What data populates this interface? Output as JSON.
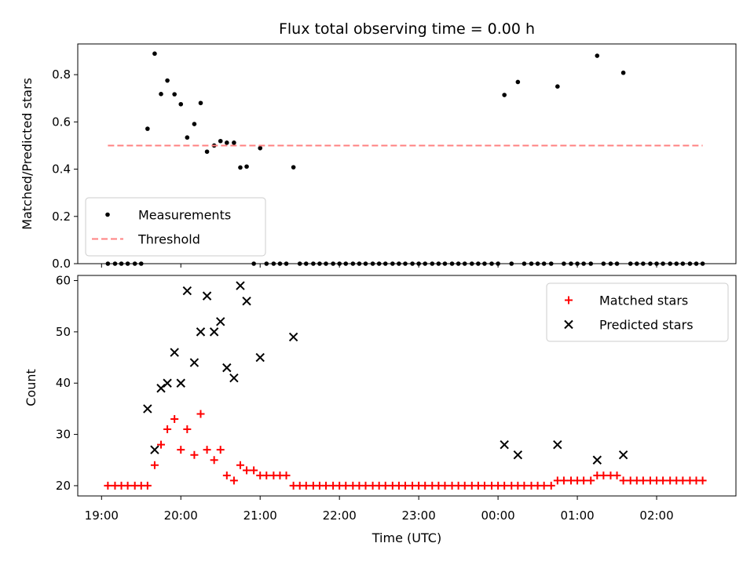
{
  "chart_data": {
    "type": "scatter",
    "title": "Flux total observing time = 0.00 h",
    "xlabel": "Time (UTC)",
    "x_tick_labels": [
      "19:00",
      "20:00",
      "21:00",
      "22:00",
      "23:00",
      "00:00",
      "01:00",
      "02:00"
    ],
    "x_unit": "hours since 19:00 UTC",
    "xlim": [
      -0.3,
      8.0
    ],
    "panels": [
      {
        "ylabel": "Matched/Predicted stars",
        "ylim": [
          0,
          0.93
        ],
        "y_ticks": [
          "0.0",
          "0.2",
          "0.4",
          "0.6",
          "0.8"
        ],
        "legend": {
          "placement": "lower-left",
          "entries": [
            "Measurements",
            "Threshold"
          ]
        },
        "series": [
          {
            "name": "Measurements",
            "marker": "dot",
            "color": "#000000",
            "points": [
              [
                0.08,
                0
              ],
              [
                0.17,
                0
              ],
              [
                0.25,
                0
              ],
              [
                0.33,
                0
              ],
              [
                0.42,
                0
              ],
              [
                0.5,
                0
              ],
              [
                0.58,
                0.571
              ],
              [
                0.67,
                0.889
              ],
              [
                0.75,
                0.718
              ],
              [
                0.83,
                0.775
              ],
              [
                0.92,
                0.717
              ],
              [
                1.0,
                0.675
              ],
              [
                1.08,
                0.534
              ],
              [
                1.17,
                0.591
              ],
              [
                1.25,
                0.68
              ],
              [
                1.33,
                0.474
              ],
              [
                1.42,
                0.5
              ],
              [
                1.5,
                0.519
              ],
              [
                1.58,
                0.512
              ],
              [
                1.67,
                0.512
              ],
              [
                1.75,
                0.407
              ],
              [
                1.83,
                0.411
              ],
              [
                1.92,
                0
              ],
              [
                2.0,
                0.489
              ],
              [
                2.08,
                0
              ],
              [
                2.17,
                0
              ],
              [
                2.25,
                0
              ],
              [
                2.33,
                0
              ],
              [
                2.42,
                0.408
              ],
              [
                2.5,
                0
              ],
              [
                2.58,
                0
              ],
              [
                2.67,
                0
              ],
              [
                2.75,
                0
              ],
              [
                2.83,
                0
              ],
              [
                2.92,
                0
              ],
              [
                3.0,
                0
              ],
              [
                3.08,
                0
              ],
              [
                3.17,
                0
              ],
              [
                3.25,
                0
              ],
              [
                3.33,
                0
              ],
              [
                3.42,
                0
              ],
              [
                3.5,
                0
              ],
              [
                3.58,
                0
              ],
              [
                3.67,
                0
              ],
              [
                3.75,
                0
              ],
              [
                3.83,
                0
              ],
              [
                3.92,
                0
              ],
              [
                4.0,
                0
              ],
              [
                4.08,
                0
              ],
              [
                4.17,
                0
              ],
              [
                4.25,
                0
              ],
              [
                4.33,
                0
              ],
              [
                4.42,
                0
              ],
              [
                4.5,
                0
              ],
              [
                4.58,
                0
              ],
              [
                4.67,
                0
              ],
              [
                4.75,
                0
              ],
              [
                4.83,
                0
              ],
              [
                4.92,
                0
              ],
              [
                5.0,
                0
              ],
              [
                5.08,
                0.714
              ],
              [
                5.17,
                0
              ],
              [
                5.25,
                0.769
              ],
              [
                5.33,
                0
              ],
              [
                5.42,
                0
              ],
              [
                5.5,
                0
              ],
              [
                5.58,
                0
              ],
              [
                5.67,
                0
              ],
              [
                5.75,
                0.75
              ],
              [
                5.83,
                0
              ],
              [
                5.92,
                0
              ],
              [
                6.0,
                0
              ],
              [
                6.08,
                0
              ],
              [
                6.17,
                0
              ],
              [
                6.25,
                0.88
              ],
              [
                6.33,
                0
              ],
              [
                6.42,
                0
              ],
              [
                6.5,
                0
              ],
              [
                6.58,
                0.808
              ],
              [
                6.67,
                0
              ],
              [
                6.75,
                0
              ],
              [
                6.83,
                0
              ],
              [
                6.92,
                0
              ],
              [
                7.0,
                0
              ],
              [
                7.08,
                0
              ],
              [
                7.17,
                0
              ],
              [
                7.25,
                0
              ],
              [
                7.33,
                0
              ],
              [
                7.42,
                0
              ],
              [
                7.5,
                0
              ],
              [
                7.58,
                0
              ]
            ]
          },
          {
            "name": "Threshold",
            "marker": "dashed-line",
            "color": "#ff8080",
            "x": [
              0.08,
              7.58
            ],
            "y": [
              0.5,
              0.5
            ]
          }
        ]
      },
      {
        "ylabel": "Count",
        "ylim": [
          18,
          61
        ],
        "y_ticks": [
          "20",
          "30",
          "40",
          "50",
          "60"
        ],
        "legend": {
          "placement": "upper-right",
          "entries": [
            "Matched stars",
            "Predicted stars"
          ]
        },
        "series": [
          {
            "name": "Matched stars",
            "marker": "plus",
            "color": "#ff0000",
            "points": [
              [
                0.08,
                20
              ],
              [
                0.17,
                20
              ],
              [
                0.25,
                20
              ],
              [
                0.33,
                20
              ],
              [
                0.42,
                20
              ],
              [
                0.5,
                20
              ],
              [
                0.58,
                20
              ],
              [
                0.67,
                24
              ],
              [
                0.75,
                28
              ],
              [
                0.83,
                31
              ],
              [
                0.92,
                33
              ],
              [
                1.0,
                27
              ],
              [
                1.08,
                31
              ],
              [
                1.17,
                26
              ],
              [
                1.25,
                34
              ],
              [
                1.33,
                27
              ],
              [
                1.42,
                25
              ],
              [
                1.5,
                27
              ],
              [
                1.58,
                22
              ],
              [
                1.67,
                21
              ],
              [
                1.75,
                24
              ],
              [
                1.83,
                23
              ],
              [
                1.92,
                23
              ],
              [
                2.0,
                22
              ],
              [
                2.08,
                22
              ],
              [
                2.17,
                22
              ],
              [
                2.25,
                22
              ],
              [
                2.33,
                22
              ],
              [
                2.42,
                20
              ],
              [
                2.5,
                20
              ],
              [
                2.58,
                20
              ],
              [
                2.67,
                20
              ],
              [
                2.75,
                20
              ],
              [
                2.83,
                20
              ],
              [
                2.92,
                20
              ],
              [
                3.0,
                20
              ],
              [
                3.08,
                20
              ],
              [
                3.17,
                20
              ],
              [
                3.25,
                20
              ],
              [
                3.33,
                20
              ],
              [
                3.42,
                20
              ],
              [
                3.5,
                20
              ],
              [
                3.58,
                20
              ],
              [
                3.67,
                20
              ],
              [
                3.75,
                20
              ],
              [
                3.83,
                20
              ],
              [
                3.92,
                20
              ],
              [
                4.0,
                20
              ],
              [
                4.08,
                20
              ],
              [
                4.17,
                20
              ],
              [
                4.25,
                20
              ],
              [
                4.33,
                20
              ],
              [
                4.42,
                20
              ],
              [
                4.5,
                20
              ],
              [
                4.58,
                20
              ],
              [
                4.67,
                20
              ],
              [
                4.75,
                20
              ],
              [
                4.83,
                20
              ],
              [
                4.92,
                20
              ],
              [
                5.0,
                20
              ],
              [
                5.08,
                20
              ],
              [
                5.17,
                20
              ],
              [
                5.25,
                20
              ],
              [
                5.33,
                20
              ],
              [
                5.42,
                20
              ],
              [
                5.5,
                20
              ],
              [
                5.58,
                20
              ],
              [
                5.67,
                20
              ],
              [
                5.75,
                21
              ],
              [
                5.83,
                21
              ],
              [
                5.92,
                21
              ],
              [
                6.0,
                21
              ],
              [
                6.08,
                21
              ],
              [
                6.17,
                21
              ],
              [
                6.25,
                22
              ],
              [
                6.33,
                22
              ],
              [
                6.42,
                22
              ],
              [
                6.5,
                22
              ],
              [
                6.58,
                21
              ],
              [
                6.67,
                21
              ],
              [
                6.75,
                21
              ],
              [
                6.83,
                21
              ],
              [
                6.92,
                21
              ],
              [
                7.0,
                21
              ],
              [
                7.08,
                21
              ],
              [
                7.17,
                21
              ],
              [
                7.25,
                21
              ],
              [
                7.33,
                21
              ],
              [
                7.42,
                21
              ],
              [
                7.5,
                21
              ],
              [
                7.58,
                21
              ]
            ]
          },
          {
            "name": "Predicted stars",
            "marker": "x",
            "color": "#000000",
            "points": [
              [
                0.58,
                35
              ],
              [
                0.67,
                27
              ],
              [
                0.75,
                39
              ],
              [
                0.83,
                40
              ],
              [
                0.92,
                46
              ],
              [
                1.0,
                40
              ],
              [
                1.08,
                58
              ],
              [
                1.17,
                44
              ],
              [
                1.25,
                50
              ],
              [
                1.33,
                57
              ],
              [
                1.42,
                50
              ],
              [
                1.5,
                52
              ],
              [
                1.58,
                43
              ],
              [
                1.67,
                41
              ],
              [
                1.75,
                59
              ],
              [
                1.83,
                56
              ],
              [
                2.0,
                45
              ],
              [
                2.42,
                49
              ],
              [
                5.08,
                28
              ],
              [
                5.25,
                26
              ],
              [
                5.75,
                28
              ],
              [
                6.25,
                25
              ],
              [
                6.58,
                26
              ]
            ]
          }
        ]
      }
    ]
  }
}
